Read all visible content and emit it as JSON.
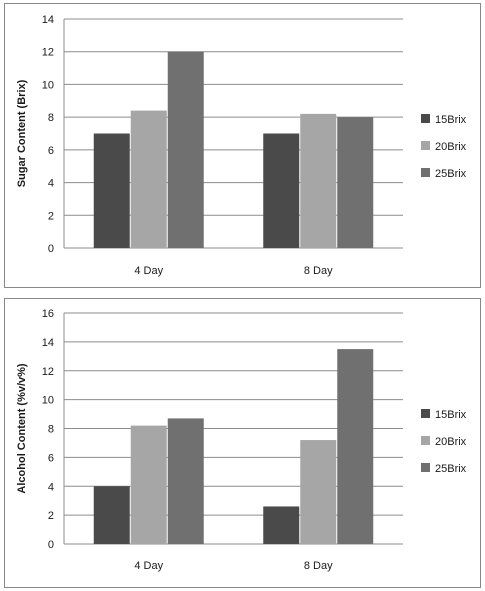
{
  "chart_data": [
    {
      "type": "bar",
      "categories": [
        "4 Day",
        "8 Day"
      ],
      "series": [
        {
          "name": "15Brix",
          "values": [
            7.0,
            7.0
          ],
          "color": "#4a4a4a"
        },
        {
          "name": "20Brix",
          "values": [
            8.4,
            8.2
          ],
          "color": "#a6a6a6"
        },
        {
          "name": "25Brix",
          "values": [
            12.0,
            8.0
          ],
          "color": "#707070"
        }
      ],
      "ylabel": "Sugar Content (Brix)",
      "ylim": [
        0,
        14
      ],
      "yticks": [
        0,
        2,
        4,
        6,
        8,
        10,
        12,
        14
      ],
      "grid": true,
      "legend": "right"
    },
    {
      "type": "bar",
      "categories": [
        "4 Day",
        "8 Day"
      ],
      "series": [
        {
          "name": "15Brix",
          "values": [
            4.0,
            2.6
          ],
          "color": "#4a4a4a"
        },
        {
          "name": "20Brix",
          "values": [
            8.2,
            7.2
          ],
          "color": "#a6a6a6"
        },
        {
          "name": "25Brix",
          "values": [
            8.7,
            13.5
          ],
          "color": "#707070"
        }
      ],
      "ylabel": "Alcohol Content (%v/v%)",
      "ylim": [
        0,
        16
      ],
      "yticks": [
        0,
        2,
        4,
        6,
        8,
        10,
        12,
        14,
        16
      ],
      "grid": true,
      "legend": "right"
    }
  ]
}
